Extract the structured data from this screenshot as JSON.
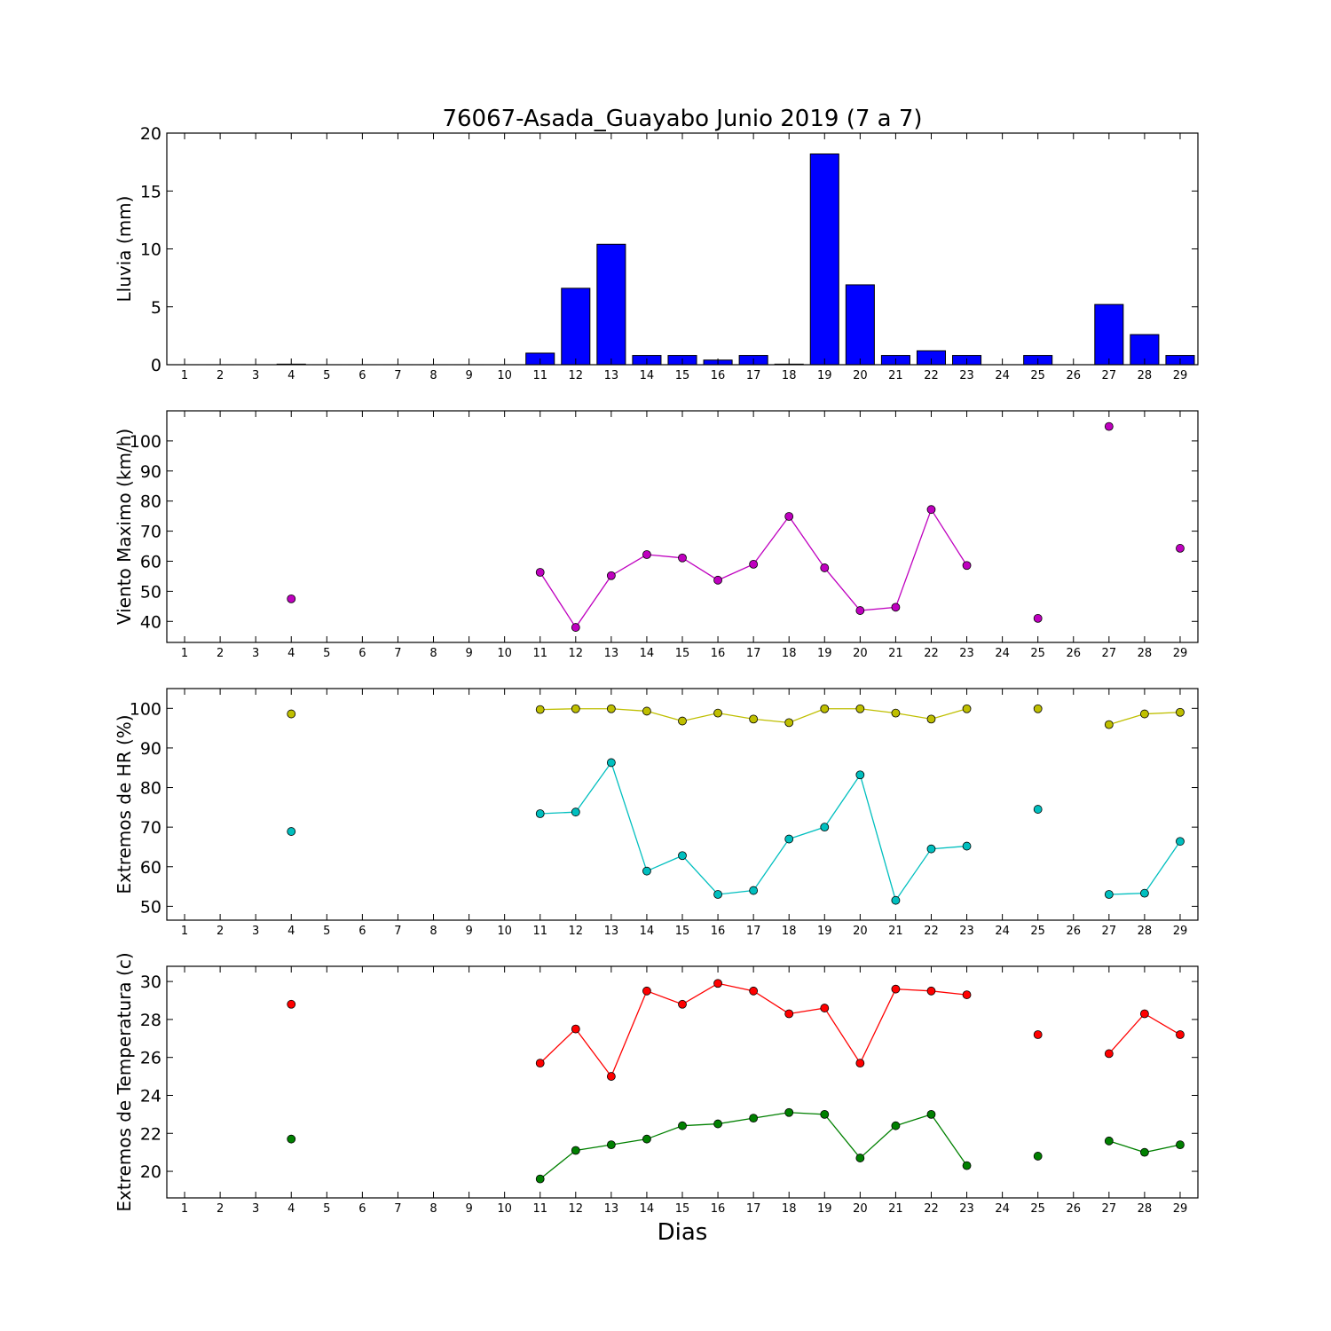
{
  "figure": {
    "title": "76067-Asada_Guayabo Junio 2019  (7 a 7)",
    "xlabel": "Dias"
  },
  "chart_data": [
    {
      "type": "bar",
      "ylabel": "Lluvia (mm)",
      "ylim": [
        0,
        20
      ],
      "yticks": [
        0,
        5,
        10,
        15,
        20
      ],
      "xlim": [
        0.5,
        29.5
      ],
      "categories": [
        1,
        2,
        3,
        4,
        5,
        6,
        7,
        8,
        9,
        10,
        11,
        12,
        13,
        14,
        15,
        16,
        17,
        18,
        19,
        20,
        21,
        22,
        23,
        24,
        25,
        26,
        27,
        28,
        29
      ],
      "values": [
        0,
        0,
        0,
        0.05,
        0,
        0,
        0,
        0,
        0,
        0,
        1.0,
        6.6,
        10.4,
        0.8,
        0.8,
        0.4,
        0.8,
        0.05,
        18.2,
        6.9,
        0.8,
        1.2,
        0.8,
        null,
        0.8,
        null,
        5.2,
        2.6,
        0.8
      ],
      "bar_color": "#0000ff",
      "grid": false
    },
    {
      "type": "line",
      "ylabel": "Viento Maximo (km/h)",
      "ylim": [
        33,
        110
      ],
      "yticks": [
        40,
        50,
        60,
        70,
        80,
        90,
        100
      ],
      "xlim": [
        0.5,
        29.5
      ],
      "x": [
        1,
        2,
        3,
        4,
        5,
        6,
        7,
        8,
        9,
        10,
        11,
        12,
        13,
        14,
        15,
        16,
        17,
        18,
        19,
        20,
        21,
        22,
        23,
        24,
        25,
        26,
        27,
        28,
        29
      ],
      "series": [
        {
          "color": "#bf00bf",
          "values": [
            null,
            null,
            null,
            47.5,
            null,
            null,
            null,
            null,
            null,
            null,
            56.3,
            38.0,
            55.2,
            62.2,
            61.1,
            53.7,
            59.0,
            74.9,
            57.8,
            43.6,
            44.7,
            77.2,
            58.6,
            null,
            41.0,
            null,
            104.8,
            null,
            64.3
          ]
        }
      ],
      "grid": false
    },
    {
      "type": "line",
      "ylabel": "Extremos de HR (%)",
      "ylim": [
        46.5,
        105
      ],
      "yticks": [
        50,
        60,
        70,
        80,
        90,
        100
      ],
      "xlim": [
        0.5,
        29.5
      ],
      "x": [
        1,
        2,
        3,
        4,
        5,
        6,
        7,
        8,
        9,
        10,
        11,
        12,
        13,
        14,
        15,
        16,
        17,
        18,
        19,
        20,
        21,
        22,
        23,
        24,
        25,
        26,
        27,
        28,
        29
      ],
      "series": [
        {
          "color": "#bfbf00",
          "values": [
            null,
            null,
            null,
            98.6,
            null,
            null,
            null,
            null,
            null,
            null,
            99.7,
            99.9,
            99.9,
            99.3,
            96.8,
            98.8,
            97.3,
            96.4,
            99.9,
            99.9,
            98.8,
            97.3,
            99.9,
            null,
            99.9,
            null,
            95.9,
            98.6,
            99.0
          ]
        },
        {
          "color": "#00bfbf",
          "values": [
            null,
            null,
            null,
            68.9,
            null,
            null,
            null,
            null,
            null,
            null,
            73.4,
            73.8,
            86.3,
            58.9,
            62.8,
            53.0,
            54.0,
            67.0,
            70.0,
            83.2,
            51.5,
            64.5,
            65.2,
            null,
            74.5,
            null,
            53.0,
            53.3,
            66.4
          ]
        }
      ],
      "grid": false
    },
    {
      "type": "line",
      "ylabel": "Extremos de Temperatura (c)",
      "ylim": [
        18.6,
        30.8
      ],
      "yticks": [
        20,
        22,
        24,
        26,
        28,
        30
      ],
      "xlim": [
        0.5,
        29.5
      ],
      "x": [
        1,
        2,
        3,
        4,
        5,
        6,
        7,
        8,
        9,
        10,
        11,
        12,
        13,
        14,
        15,
        16,
        17,
        18,
        19,
        20,
        21,
        22,
        23,
        24,
        25,
        26,
        27,
        28,
        29
      ],
      "series": [
        {
          "color": "#ff0000",
          "values": [
            null,
            null,
            null,
            28.8,
            null,
            null,
            null,
            null,
            null,
            null,
            25.7,
            27.5,
            25.0,
            29.5,
            28.8,
            29.9,
            29.5,
            28.3,
            28.6,
            25.7,
            29.6,
            29.5,
            29.3,
            null,
            27.2,
            null,
            26.2,
            28.3,
            27.2
          ]
        },
        {
          "color": "#008000",
          "values": [
            null,
            null,
            null,
            21.7,
            null,
            null,
            null,
            null,
            null,
            null,
            19.6,
            21.1,
            21.4,
            21.7,
            22.4,
            22.5,
            22.8,
            23.1,
            23.0,
            20.7,
            22.4,
            23.0,
            20.3,
            null,
            20.8,
            null,
            21.6,
            21.0,
            21.4
          ]
        }
      ],
      "grid": false
    }
  ]
}
